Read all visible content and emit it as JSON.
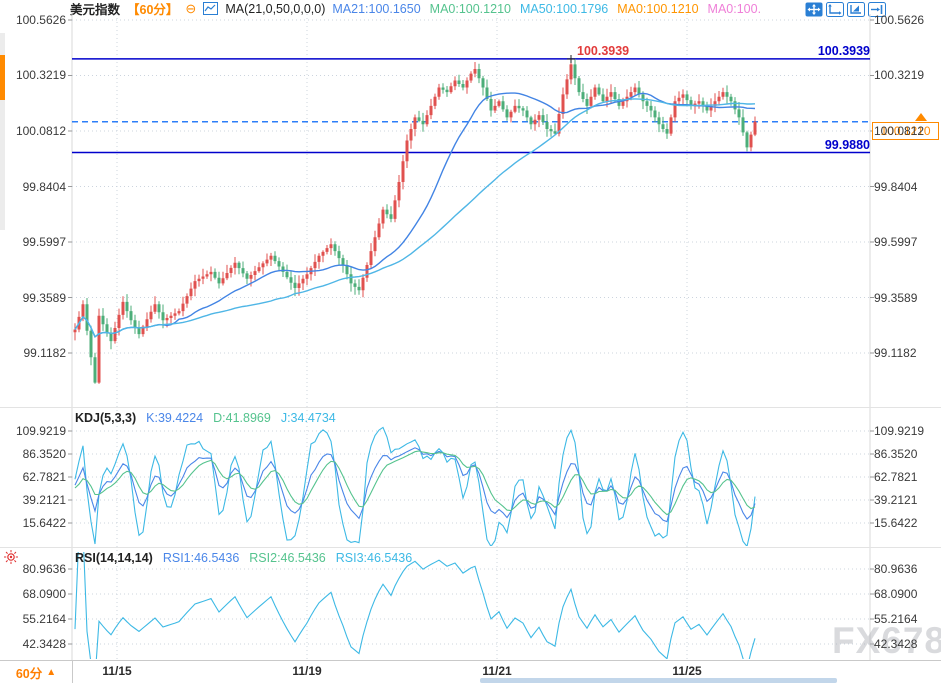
{
  "header": {
    "symbol": "美元指数",
    "period_tag": "【60分】",
    "collapse_glyph": "⊖",
    "ma_settings": "MA(21,0,50,0,0,0)",
    "ma_values": [
      {
        "label": "MA21:100.1650",
        "color": "#4a86e8"
      },
      {
        "label": "MA0:100.1210",
        "color": "#55c38e"
      },
      {
        "label": "MA50:100.1796",
        "color": "#3db9e5"
      },
      {
        "label": "MA0:100.1210",
        "color": "#ff9500"
      },
      {
        "label": "MA0:100.",
        "color": "#ef7fd8"
      }
    ]
  },
  "main_chart": {
    "y_axis_labels": [
      "100.5626",
      "100.3219",
      "100.0812",
      "99.8404",
      "99.5997",
      "99.3589",
      "99.1182"
    ],
    "lines": {
      "resistance": {
        "label": "100.3939"
      },
      "support": {
        "label": "99.9880"
      },
      "current": {
        "label": "100.1210"
      }
    }
  },
  "kdj": {
    "title": "KDJ(5,3,3)",
    "k_label": "K:39.4224",
    "d_label": "D:41.8969",
    "j_label": "J:34.4734",
    "y_axis_labels": [
      "109.9219",
      "86.3520",
      "62.7821",
      "39.2121",
      "15.6422"
    ]
  },
  "rsi": {
    "title": "RSI(14,14,14)",
    "rsi1_label": "RSI1:46.5436",
    "rsi2_label": "RSI2:46.5436",
    "rsi3_label": "RSI3:46.5436",
    "y_axis_labels": [
      "80.9636",
      "68.0900",
      "55.2164",
      "42.3428"
    ]
  },
  "x_axis": {
    "period_label": "60分",
    "period_arrow": "▲",
    "dates": [
      "11/15",
      "11/19",
      "11/21",
      "11/25"
    ]
  },
  "watermark": "FX678",
  "colors": {
    "up_candle": "#e0514f",
    "down_candle": "#4cae79",
    "ma21_line": "#4284e4",
    "ma50_line": "#4fb6e6",
    "k_line": "#4a86e8",
    "d_line": "#55c38e",
    "j_line": "#3db9e5",
    "rsi_line": "#3db9e5",
    "level_line": "#0000cc",
    "current_dash": "#2c7ef8",
    "resistance_text": "#e23b3b",
    "level_text": "#0000cc",
    "accent_orange": "#ff8a00",
    "grid": "#ccd4de"
  },
  "chart_data": {
    "type": "candlestick",
    "title": "美元指数 【60分】",
    "price_axis_ticks": [
      100.5626,
      100.3219,
      100.0812,
      99.8404,
      99.5997,
      99.3589,
      99.1182
    ],
    "price_axis_range": [
      99.1182,
      100.5626
    ],
    "x_tick_dates": [
      "11/15",
      "11/19",
      "11/21",
      "11/25"
    ],
    "levels": {
      "resistance_high": 100.3939,
      "support": 99.988,
      "last_price": 100.121
    },
    "moving_averages": {
      "MA21": 100.165,
      "MA0_a": 100.121,
      "MA50": 100.1796,
      "MA0_b": 100.121
    },
    "kdj_values": {
      "K": 39.4224,
      "D": 41.8969,
      "J": 34.4734,
      "axis_ticks": [
        109.9219,
        86.352,
        62.7821,
        39.2121,
        15.6422
      ]
    },
    "rsi_values": {
      "RSI1": 46.5436,
      "RSI2": 46.5436,
      "RSI3": 46.5436,
      "axis_ticks": [
        80.9636,
        68.09,
        55.2164,
        42.3428
      ]
    },
    "candle_count": 171,
    "close_path_anchors": [
      [
        0,
        99.22
      ],
      [
        2,
        99.33
      ],
      [
        4,
        99.1
      ],
      [
        5,
        98.99
      ],
      [
        6,
        99.28
      ],
      [
        9,
        99.17
      ],
      [
        12,
        99.34
      ],
      [
        14,
        99.26
      ],
      [
        16,
        99.2
      ],
      [
        20,
        99.33
      ],
      [
        22,
        99.26
      ],
      [
        26,
        99.3
      ],
      [
        30,
        99.43
      ],
      [
        34,
        99.47
      ],
      [
        36,
        99.42
      ],
      [
        40,
        99.51
      ],
      [
        43,
        99.44
      ],
      [
        46,
        99.49
      ],
      [
        49,
        99.54
      ],
      [
        52,
        99.47
      ],
      [
        55,
        99.4
      ],
      [
        58,
        99.46
      ],
      [
        61,
        99.54
      ],
      [
        64,
        99.59
      ],
      [
        67,
        99.5
      ],
      [
        69,
        99.42
      ],
      [
        71,
        99.39
      ],
      [
        73,
        99.5
      ],
      [
        75,
        99.62
      ],
      [
        77,
        99.74
      ],
      [
        79,
        99.7
      ],
      [
        81,
        99.86
      ],
      [
        83,
        100.04
      ],
      [
        85,
        100.14
      ],
      [
        87,
        100.11
      ],
      [
        89,
        100.19
      ],
      [
        91,
        100.27
      ],
      [
        93,
        100.25
      ],
      [
        95,
        100.3
      ],
      [
        97,
        100.27
      ],
      [
        99,
        100.33
      ],
      [
        100,
        100.35
      ],
      [
        102,
        100.27
      ],
      [
        104,
        100.17
      ],
      [
        106,
        100.21
      ],
      [
        108,
        100.14
      ],
      [
        110,
        100.19
      ],
      [
        112,
        100.17
      ],
      [
        114,
        100.11
      ],
      [
        116,
        100.15
      ],
      [
        118,
        100.09
      ],
      [
        120,
        100.07
      ],
      [
        122,
        100.24
      ],
      [
        124,
        100.37
      ],
      [
        126,
        100.25
      ],
      [
        128,
        100.19
      ],
      [
        130,
        100.27
      ],
      [
        132,
        100.21
      ],
      [
        134,
        100.25
      ],
      [
        136,
        100.19
      ],
      [
        138,
        100.23
      ],
      [
        140,
        100.27
      ],
      [
        142,
        100.21
      ],
      [
        144,
        100.17
      ],
      [
        146,
        100.11
      ],
      [
        148,
        100.07
      ],
      [
        150,
        100.21
      ],
      [
        152,
        100.24
      ],
      [
        154,
        100.19
      ],
      [
        156,
        100.21
      ],
      [
        158,
        100.17
      ],
      [
        160,
        100.21
      ],
      [
        162,
        100.25
      ],
      [
        164,
        100.21
      ],
      [
        166,
        100.14
      ],
      [
        168,
        100.01
      ],
      [
        170,
        100.121
      ]
    ],
    "note": "anchors trace the visible close path; OHLC wicks and KDJ/RSI curves derived deterministically from them"
  }
}
